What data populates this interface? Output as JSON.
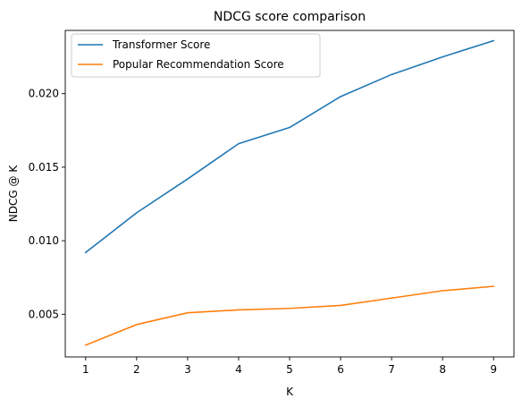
{
  "chart_data": {
    "type": "line",
    "title": "NDCG score comparison",
    "xlabel": "K",
    "ylabel": "NDCG @ K",
    "x": [
      1,
      2,
      3,
      4,
      5,
      6,
      7,
      8,
      9
    ],
    "xlim": [
      0.6,
      9.4
    ],
    "ylim": [
      0.0021,
      0.0243
    ],
    "xticks": [
      "1",
      "2",
      "3",
      "4",
      "5",
      "6",
      "7",
      "8",
      "9"
    ],
    "yticks": [
      {
        "value": 0.005,
        "label": "0.005"
      },
      {
        "value": 0.01,
        "label": "0.010"
      },
      {
        "value": 0.015,
        "label": "0.015"
      },
      {
        "value": 0.02,
        "label": "0.020"
      }
    ],
    "grid": false,
    "legend_position": "top-left",
    "series": [
      {
        "name": "Transformer Score",
        "color": "#1f77b4",
        "values": [
          0.0092,
          0.0119,
          0.0142,
          0.0166,
          0.0177,
          0.0198,
          0.0213,
          0.0225,
          0.0236
        ]
      },
      {
        "name": "Popular Recommendation Score",
        "color": "#ff7f0e",
        "values": [
          0.0029,
          0.0043,
          0.0051,
          0.0053,
          0.0054,
          0.0056,
          0.0061,
          0.0066,
          0.0069
        ]
      }
    ]
  }
}
